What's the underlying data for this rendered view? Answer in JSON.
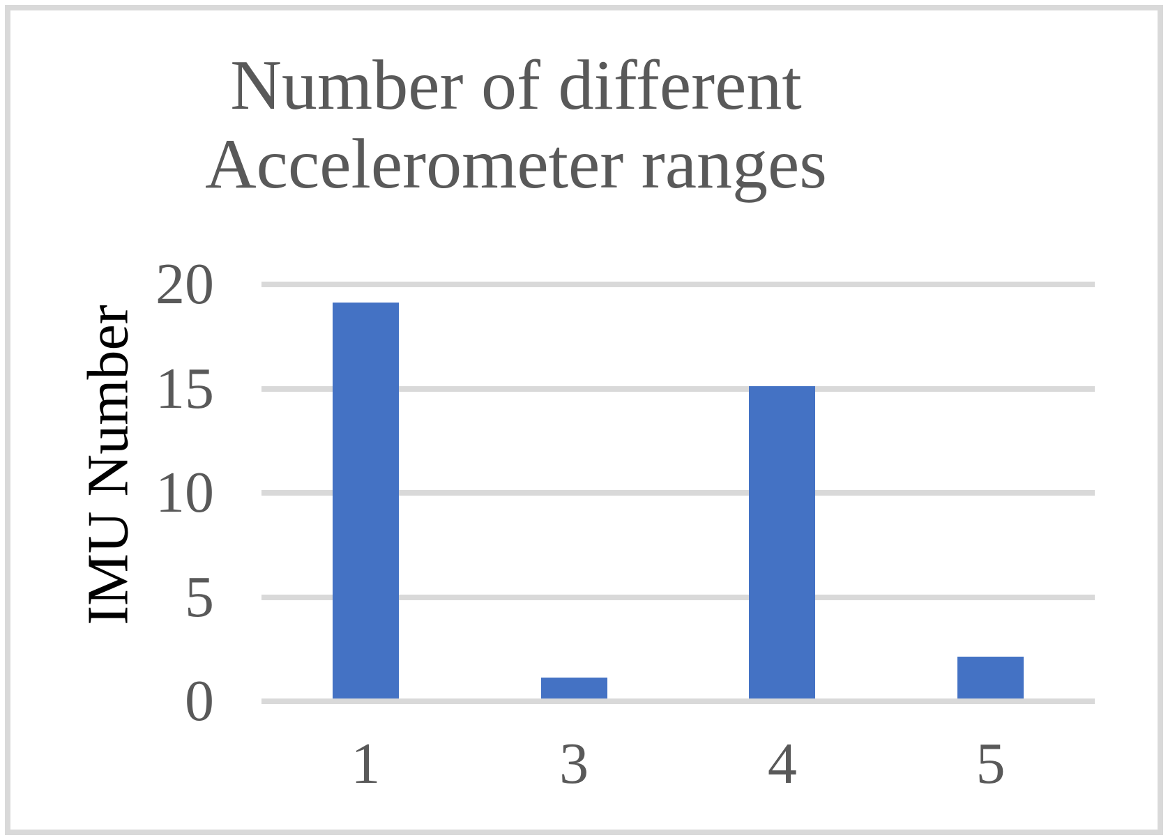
{
  "frame": {
    "border_color": "#D9D9D9"
  },
  "chart_data": {
    "type": "bar",
    "title": "Number of different Accelerometer ranges",
    "title_lines": [
      "Number of different",
      "Accelerometer ranges"
    ],
    "categories": [
      "1",
      "3",
      "4",
      "5"
    ],
    "values": [
      19,
      1,
      15,
      2
    ],
    "xlabel": "",
    "ylabel": "IMU Number",
    "ylim": [
      0,
      20
    ],
    "yticks": [
      20,
      15,
      10,
      5,
      0
    ],
    "grid": true,
    "legend": false,
    "bar_color": "#4472C4",
    "gridline_color": "#D9D9D9",
    "tick_label_color": "#595959",
    "title_color": "#595959",
    "axis_title_color": "#000000"
  }
}
